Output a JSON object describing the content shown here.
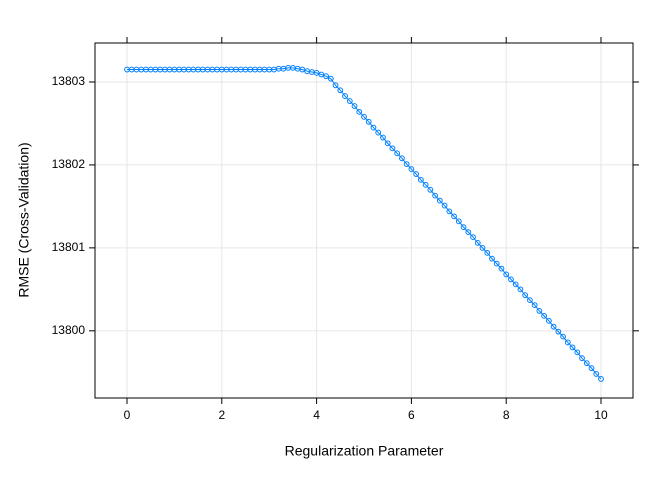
{
  "chart_data": {
    "type": "line",
    "x_label": "Regularization Parameter",
    "y_label": "RMSE (Cross-Validation)",
    "color": "#0080ff",
    "grid": true,
    "x": [
      0,
      0.1,
      0.2,
      0.3,
      0.4,
      0.5,
      0.6,
      0.7,
      0.8,
      0.9,
      1,
      1.1,
      1.2,
      1.3,
      1.4,
      1.5,
      1.6,
      1.7,
      1.8,
      1.9,
      2,
      2.1,
      2.2,
      2.3,
      2.4,
      2.5,
      2.6,
      2.7,
      2.8,
      2.9,
      3,
      3.1,
      3.2,
      3.3,
      3.4,
      3.5,
      3.6,
      3.7,
      3.8,
      3.9,
      4,
      4.1,
      4.2,
      4.3,
      4.4,
      4.5,
      4.6,
      4.7,
      4.8,
      4.9,
      5,
      5.1,
      5.2,
      5.3,
      5.4,
      5.5,
      5.6,
      5.7,
      5.8,
      5.9,
      6,
      6.1,
      6.2,
      6.3,
      6.4,
      6.5,
      6.6,
      6.7,
      6.8,
      6.9,
      7,
      7.1,
      7.2,
      7.3,
      7.4,
      7.5,
      7.6,
      7.7,
      7.8,
      7.9,
      8,
      8.1,
      8.2,
      8.3,
      8.4,
      8.5,
      8.6,
      8.7,
      8.8,
      8.9,
      9,
      9.1,
      9.2,
      9.3,
      9.4,
      9.5,
      9.6,
      9.7,
      9.8,
      9.9,
      10
    ],
    "values": [
      13803.15,
      13803.15,
      13803.15,
      13803.15,
      13803.15,
      13803.15,
      13803.15,
      13803.15,
      13803.15,
      13803.15,
      13803.15,
      13803.15,
      13803.15,
      13803.15,
      13803.15,
      13803.15,
      13803.15,
      13803.15,
      13803.15,
      13803.15,
      13803.15,
      13803.15,
      13803.15,
      13803.15,
      13803.15,
      13803.15,
      13803.15,
      13803.15,
      13803.15,
      13803.15,
      13803.15,
      13803.15,
      13803.16,
      13803.16,
      13803.17,
      13803.17,
      13803.16,
      13803.15,
      13803.13,
      13803.12,
      13803.11,
      13803.09,
      13803.07,
      13803.04,
      13802.96,
      13802.9,
      13802.83,
      13802.77,
      13802.71,
      13802.64,
      13802.58,
      13802.52,
      13802.45,
      13802.39,
      13802.33,
      13802.26,
      13802.2,
      13802.14,
      13802.08,
      13802.01,
      13801.95,
      13801.89,
      13801.82,
      13801.76,
      13801.7,
      13801.63,
      13801.57,
      13801.51,
      13801.44,
      13801.38,
      13801.32,
      13801.25,
      13801.19,
      13801.13,
      13801.06,
      13801.0,
      13800.94,
      13800.87,
      13800.81,
      13800.75,
      13800.68,
      13800.62,
      13800.56,
      13800.5,
      13800.43,
      13800.37,
      13800.31,
      13800.24,
      13800.18,
      13800.12,
      13800.05,
      13799.99,
      13799.93,
      13799.86,
      13799.8,
      13799.74,
      13799.67,
      13799.61,
      13799.55,
      13799.48,
      13799.42
    ],
    "xlim": [
      -0.675,
      10.675
    ],
    "ylim": [
      13799.19,
      13803.47
    ],
    "xticks": [
      0,
      2,
      4,
      6,
      8,
      10
    ],
    "yticks": [
      13800,
      13801,
      13802,
      13803
    ]
  }
}
